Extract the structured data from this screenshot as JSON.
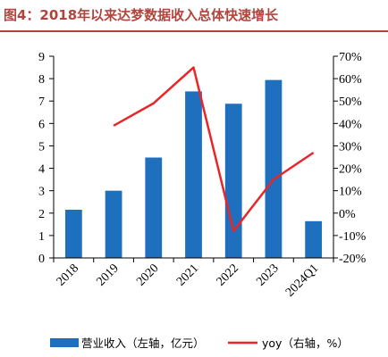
{
  "title": "图4：2018年以来达梦数据收入总体快速增长",
  "colors": {
    "bar": "#1f6fbf",
    "line": "#e8262a",
    "title": "#b1453e"
  },
  "chart_data": {
    "type": "bar",
    "categories": [
      "2018",
      "2019",
      "2020",
      "2021",
      "2022",
      "2023",
      "2024Q1"
    ],
    "series": [
      {
        "name": "营业收入（左轴，亿元）",
        "type": "bar",
        "axis": "left",
        "values": [
          2.15,
          3.0,
          4.48,
          7.43,
          6.88,
          7.94,
          1.64
        ]
      },
      {
        "name": "yoy（右轴，%）",
        "type": "line",
        "axis": "right",
        "values": [
          null,
          39,
          49,
          65,
          -8,
          15,
          27
        ]
      }
    ],
    "yleft": {
      "min": 0,
      "max": 9,
      "step": 1,
      "ticks": [
        "0",
        "1",
        "2",
        "3",
        "4",
        "5",
        "6",
        "7",
        "8",
        "9"
      ]
    },
    "yright": {
      "min": -20,
      "max": 70,
      "step": 10,
      "ticks": [
        "-20%",
        "-10%",
        "0%",
        "10%",
        "20%",
        "30%",
        "40%",
        "50%",
        "60%",
        "70%"
      ]
    },
    "grid": false,
    "legend": "bottom"
  }
}
